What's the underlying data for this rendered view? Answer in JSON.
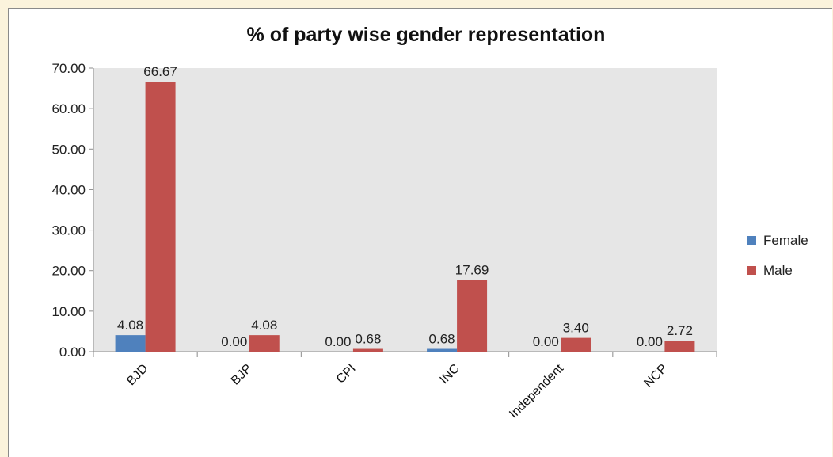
{
  "chart_data": {
    "type": "bar",
    "title": "% of party wise gender representation",
    "categories": [
      "BJD",
      "BJP",
      "CPI",
      "INC",
      "Independent",
      "NCP"
    ],
    "series": [
      {
        "name": "Female",
        "values": [
          4.08,
          0.0,
          0.0,
          0.68,
          0.0,
          0.0
        ],
        "labels": [
          "4.08",
          "0.00",
          "0.00",
          "0.68",
          "0.00",
          "0.00"
        ]
      },
      {
        "name": "Male",
        "values": [
          66.67,
          4.08,
          0.68,
          17.69,
          3.4,
          2.72
        ],
        "labels": [
          "66.67",
          "4.08",
          "0.68",
          "17.69",
          "3.40",
          "2.72"
        ]
      }
    ],
    "ylim": [
      0,
      70
    ],
    "yticks": [
      "0.00",
      "10.00",
      "20.00",
      "30.00",
      "40.00",
      "50.00",
      "60.00",
      "70.00"
    ],
    "colors": {
      "Female": "#4f81bd",
      "Male": "#c0504d",
      "plot_bg": "#e6e6e6",
      "page_bg": "#fbf3dc"
    },
    "legend_position": "right",
    "grid": false
  }
}
